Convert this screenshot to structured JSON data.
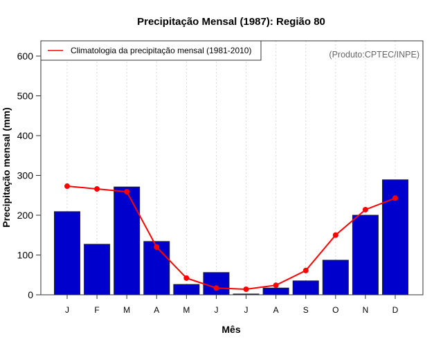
{
  "chart_data": {
    "type": "bar",
    "title": "Precipitação Mensal (1987): Região 80",
    "xlabel": "Mês",
    "ylabel": "Precipitação mensal (mm)",
    "categories": [
      "J",
      "F",
      "M",
      "A",
      "M",
      "J",
      "J",
      "A",
      "S",
      "O",
      "N",
      "D"
    ],
    "ylim": [
      0,
      640
    ],
    "yticks": [
      0,
      100,
      200,
      300,
      400,
      500,
      600
    ],
    "grid": "vertical-dotted",
    "legend_position": "top-left",
    "series": [
      {
        "name": "Precipitação mensal 1987",
        "type": "bar",
        "color": "#0000CD",
        "values": [
          209,
          127,
          271,
          134,
          26,
          56,
          2,
          17,
          35,
          87,
          200,
          289
        ]
      },
      {
        "name": "Climatologia da precipitação mensal (1981-2010)",
        "type": "line",
        "color": "#FF0000",
        "values": [
          273,
          266,
          259,
          120,
          42,
          17,
          14,
          24,
          61,
          150,
          214,
          243
        ]
      }
    ],
    "legend": [
      "Climatologia da precipitação mensal (1981-2010)"
    ],
    "annotation": "(Produto:CPTEC/INPE)"
  }
}
